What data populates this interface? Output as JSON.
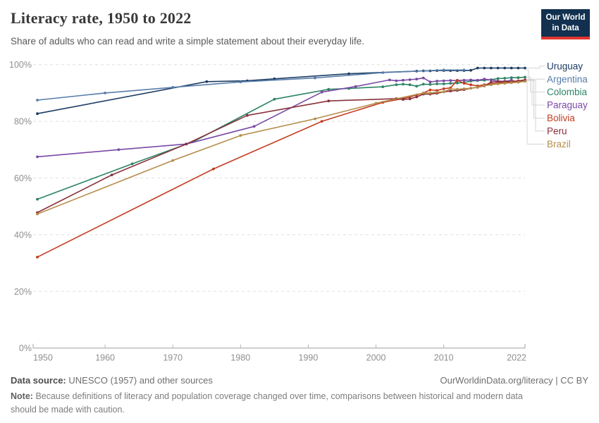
{
  "header": {
    "logo_line1": "Our World",
    "logo_line2": "in Data"
  },
  "chart_data": {
    "type": "line",
    "title": "Literacy rate, 1950 to 2022",
    "subtitle": "Share of adults who can read and write a simple statement about their everyday life.",
    "x_axis": {
      "label": "",
      "ticks": [
        1950,
        1960,
        1970,
        1980,
        1990,
        2000,
        2010,
        2022
      ],
      "range": [
        1950,
        2022
      ]
    },
    "y_axis": {
      "label": "",
      "ticks": [
        0,
        20,
        40,
        60,
        80,
        100
      ],
      "format": "percent",
      "range": [
        0,
        100
      ],
      "gridlines": "dashed"
    },
    "legend_position": "right",
    "series": [
      {
        "name": "Uruguay",
        "color": "#1d3d63",
        "points": [
          [
            1950,
            82.7
          ],
          [
            1975,
            94.0
          ],
          [
            1981,
            94.3
          ],
          [
            1985,
            95.0
          ],
          [
            1996,
            96.8
          ],
          [
            2006,
            97.7
          ],
          [
            2007,
            97.8
          ],
          [
            2008,
            97.8
          ],
          [
            2009,
            97.9
          ],
          [
            2010,
            97.9
          ],
          [
            2011,
            97.9
          ],
          [
            2012,
            97.9
          ],
          [
            2013,
            97.9
          ],
          [
            2014,
            98.0
          ],
          [
            2015,
            98.8
          ],
          [
            2016,
            98.8
          ],
          [
            2017,
            98.8
          ],
          [
            2018,
            98.8
          ],
          [
            2019,
            98.8
          ],
          [
            2020,
            98.8
          ],
          [
            2021,
            98.8
          ],
          [
            2022,
            98.8
          ]
        ]
      },
      {
        "name": "Argentina",
        "color": "#577ca9",
        "points": [
          [
            1950,
            87.5
          ],
          [
            1960,
            90.0
          ],
          [
            1970,
            92.0
          ],
          [
            1980,
            93.9
          ],
          [
            1991,
            95.3
          ],
          [
            2001,
            97.2
          ],
          [
            2010,
            98.1
          ],
          [
            2013,
            98.1
          ]
        ]
      },
      {
        "name": "Colombia",
        "color": "#2c8465",
        "points": [
          [
            1950,
            52.5
          ],
          [
            1964,
            65.0
          ],
          [
            1973,
            72.8
          ],
          [
            1985,
            87.8
          ],
          [
            1993,
            91.3
          ],
          [
            1996,
            91.6
          ],
          [
            2001,
            92.2
          ],
          [
            2003,
            92.9
          ],
          [
            2004,
            93.1
          ],
          [
            2005,
            92.9
          ],
          [
            2006,
            92.4
          ],
          [
            2007,
            93.1
          ],
          [
            2008,
            93.0
          ],
          [
            2009,
            93.2
          ],
          [
            2010,
            93.2
          ],
          [
            2011,
            93.4
          ],
          [
            2012,
            93.5
          ],
          [
            2013,
            93.7
          ],
          [
            2014,
            94.2
          ],
          [
            2015,
            94.4
          ],
          [
            2016,
            94.5
          ],
          [
            2017,
            94.7
          ],
          [
            2018,
            95.1
          ],
          [
            2019,
            95.2
          ],
          [
            2020,
            95.4
          ],
          [
            2021,
            95.4
          ],
          [
            2022,
            95.6
          ]
        ]
      },
      {
        "name": "Paraguay",
        "color": "#7a49a5",
        "points": [
          [
            1950,
            67.5
          ],
          [
            1962,
            70.0
          ],
          [
            1972,
            72.0
          ],
          [
            1982,
            78.2
          ],
          [
            1992,
            90.3
          ],
          [
            1997,
            92.3
          ],
          [
            2002,
            94.6
          ],
          [
            2003,
            94.3
          ],
          [
            2004,
            94.5
          ],
          [
            2005,
            94.7
          ],
          [
            2006,
            94.9
          ],
          [
            2007,
            95.3
          ],
          [
            2008,
            93.9
          ],
          [
            2009,
            94.2
          ],
          [
            2010,
            94.3
          ],
          [
            2011,
            94.4
          ],
          [
            2012,
            94.4
          ],
          [
            2013,
            94.5
          ],
          [
            2014,
            94.6
          ],
          [
            2015,
            94.5
          ],
          [
            2016,
            94.9
          ],
          [
            2017,
            94.6
          ],
          [
            2018,
            94.2
          ],
          [
            2019,
            94.1
          ],
          [
            2020,
            94.5
          ],
          [
            2021,
            93.8
          ],
          [
            2022,
            94.7
          ]
        ]
      },
      {
        "name": "Bolivia",
        "color": "#c23d22",
        "points": [
          [
            1950,
            32.1
          ],
          [
            1976,
            63.2
          ],
          [
            1992,
            80.0
          ],
          [
            2001,
            86.7
          ],
          [
            2004,
            88.0
          ],
          [
            2005,
            88.6
          ],
          [
            2006,
            89.3
          ],
          [
            2007,
            90.0
          ],
          [
            2008,
            91.1
          ],
          [
            2009,
            90.9
          ],
          [
            2010,
            91.5
          ],
          [
            2011,
            91.8
          ],
          [
            2012,
            94.5
          ],
          [
            2013,
            93.4
          ],
          [
            2014,
            92.9
          ],
          [
            2015,
            92.5
          ],
          [
            2016,
            92.9
          ],
          [
            2017,
            93.2
          ],
          [
            2018,
            93.5
          ],
          [
            2019,
            93.8
          ],
          [
            2020,
            94.0
          ],
          [
            2021,
            94.3
          ],
          [
            2022,
            94.6
          ]
        ]
      },
      {
        "name": "Peru",
        "color": "#883039",
        "points": [
          [
            1950,
            47.8
          ],
          [
            1961,
            61.1
          ],
          [
            1972,
            72.0
          ],
          [
            1981,
            82.1
          ],
          [
            1993,
            87.2
          ],
          [
            2003,
            88.0
          ],
          [
            2004,
            87.7
          ],
          [
            2005,
            87.9
          ],
          [
            2006,
            88.6
          ],
          [
            2007,
            89.6
          ],
          [
            2008,
            89.6
          ],
          [
            2009,
            89.9
          ],
          [
            2010,
            90.4
          ],
          [
            2011,
            90.7
          ],
          [
            2012,
            90.9
          ],
          [
            2013,
            91.2
          ],
          [
            2014,
            91.7
          ],
          [
            2015,
            92.0
          ],
          [
            2016,
            92.5
          ],
          [
            2017,
            93.8
          ],
          [
            2018,
            94.0
          ],
          [
            2019,
            94.1
          ],
          [
            2020,
            93.8
          ],
          [
            2021,
            94.1
          ],
          [
            2022,
            94.4
          ]
        ]
      },
      {
        "name": "Brazil",
        "color": "#b68d4c",
        "points": [
          [
            1950,
            47.3
          ],
          [
            1970,
            66.2
          ],
          [
            1980,
            75.0
          ],
          [
            1991,
            80.9
          ],
          [
            2000,
            86.4
          ],
          [
            2007,
            90.0
          ],
          [
            2008,
            90.0
          ],
          [
            2009,
            90.3
          ],
          [
            2010,
            90.4
          ],
          [
            2011,
            91.4
          ],
          [
            2012,
            91.3
          ],
          [
            2013,
            91.5
          ],
          [
            2014,
            91.7
          ],
          [
            2015,
            92.0
          ],
          [
            2016,
            92.6
          ],
          [
            2017,
            92.9
          ],
          [
            2018,
            93.2
          ],
          [
            2019,
            93.4
          ],
          [
            2020,
            93.6
          ],
          [
            2021,
            93.8
          ],
          [
            2022,
            94.1
          ]
        ]
      }
    ]
  },
  "footer": {
    "data_source_label": "Data source:",
    "data_source": "UNESCO (1957) and other sources",
    "link": "OurWorldinData.org/literacy | CC BY",
    "note_label": "Note:",
    "note": "Because definitions of literacy and population coverage changed over time, comparisons between historical and modern data should be made with caution."
  }
}
